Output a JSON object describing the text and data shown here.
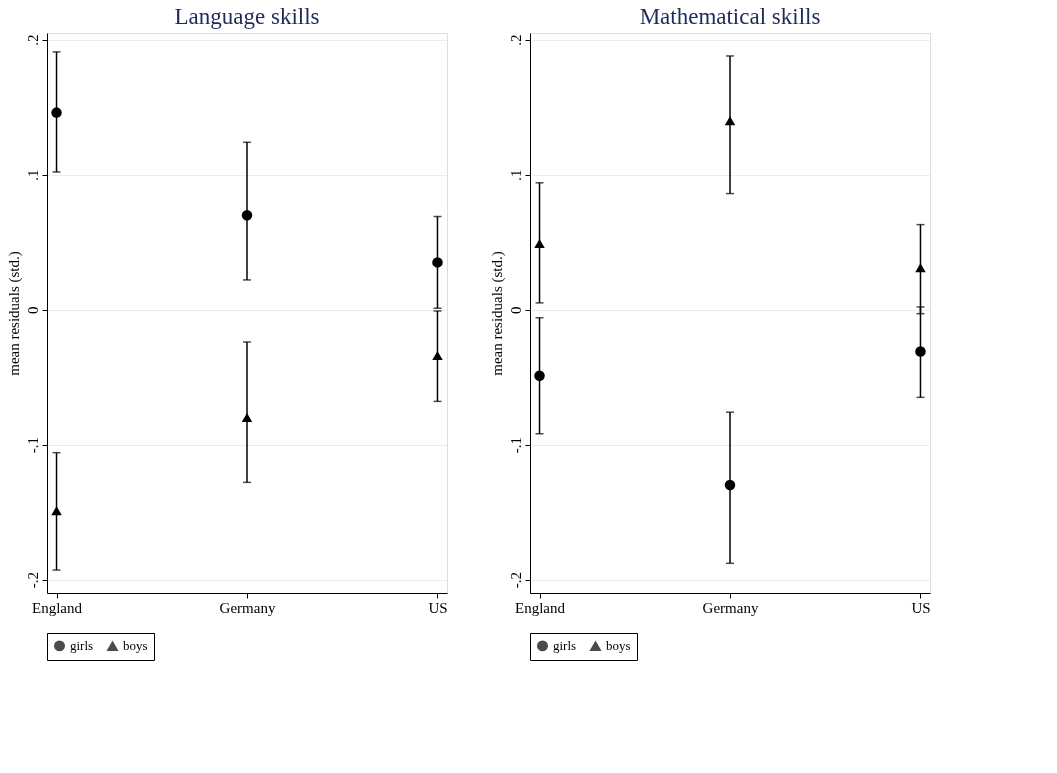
{
  "chart_data": [
    {
      "type": "scatter",
      "title": "Language skills",
      "ylabel": "mean residuals (std.)",
      "categories": [
        "England",
        "Germany",
        "US"
      ],
      "series": [
        {
          "name": "girls",
          "color": "#000000",
          "marker": "circle",
          "values": [
            0.146,
            0.07,
            0.035
          ],
          "errors": [
            [
              0.102,
              0.191
            ],
            [
              0.022,
              0.124
            ],
            [
              0.001,
              0.069
            ]
          ]
        },
        {
          "name": "boys",
          "color": "#000000",
          "marker": "triangle",
          "values": [
            -0.149,
            -0.08,
            -0.034
          ],
          "errors": [
            [
              -0.193,
              -0.106
            ],
            [
              -0.128,
              -0.024
            ],
            [
              -0.068,
              -0.001
            ]
          ]
        }
      ],
      "ylim": [
        -0.21,
        0.205
      ],
      "yticks": [
        {
          "value": -0.2,
          "label": "-.2"
        },
        {
          "value": -0.1,
          "label": "-.1"
        },
        0,
        {
          "value": 0.1,
          "label": ".1"
        },
        {
          "value": 0.2,
          "label": ".2"
        }
      ],
      "grid": "y",
      "legend": "bottom"
    },
    {
      "type": "scatter",
      "title": "Mathematical skills",
      "ylabel": "mean residuals (std.)",
      "categories": [
        "England",
        "Germany",
        "US"
      ],
      "series": [
        {
          "name": "girls",
          "color": "#000000",
          "marker": "circle",
          "values": [
            -0.049,
            -0.13,
            -0.031
          ],
          "errors": [
            [
              -0.092,
              -0.006
            ],
            [
              -0.188,
              -0.076
            ],
            [
              -0.065,
              0.002
            ]
          ]
        },
        {
          "name": "boys",
          "color": "#000000",
          "marker": "triangle",
          "values": [
            0.049,
            0.14,
            0.031
          ],
          "errors": [
            [
              0.005,
              0.094
            ],
            [
              0.086,
              0.188
            ],
            [
              -0.003,
              0.063
            ]
          ]
        }
      ],
      "ylim": [
        -0.21,
        0.205
      ],
      "yticks": [
        {
          "value": -0.2,
          "label": "-.2"
        },
        {
          "value": -0.1,
          "label": "-.1"
        },
        0,
        {
          "value": 0.1,
          "label": ".1"
        },
        {
          "value": 0.2,
          "label": ".2"
        }
      ],
      "grid": "y",
      "legend": "bottom"
    }
  ]
}
